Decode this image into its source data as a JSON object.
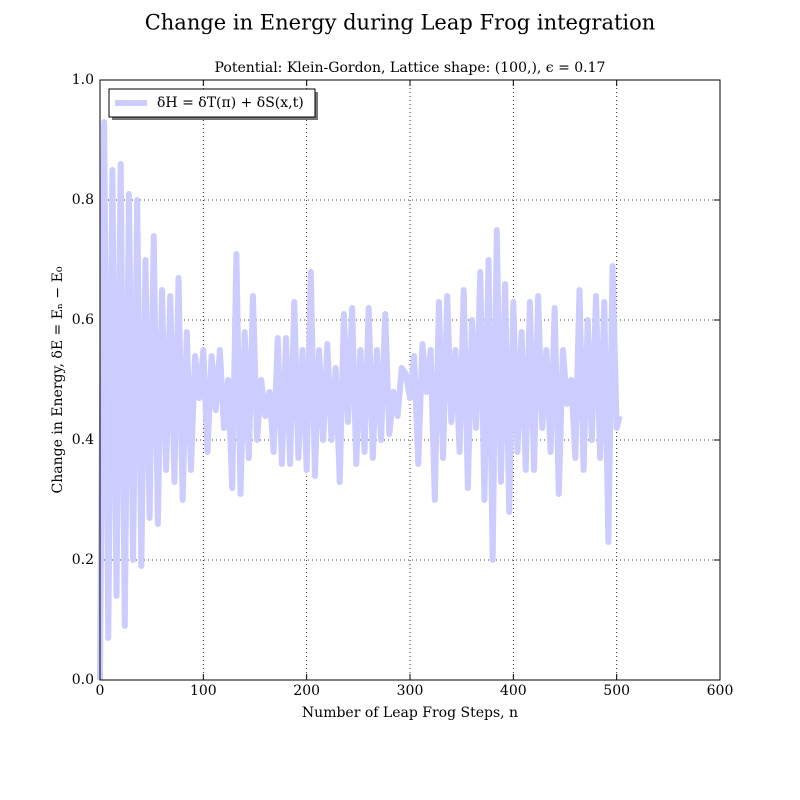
{
  "chart_data": {
    "type": "line",
    "title": "Change in Energy during Leap Frog integration",
    "subtitle": "Potential: Klein-Gordon, Lattice shape: (100,), ϵ = 0.17",
    "x_label": "Number of Leap Frog Steps, n",
    "y_label": "Change in Energy, δE = Eₙ − E₀",
    "x": [
      0,
      4,
      8,
      12,
      16,
      20,
      24,
      28,
      32,
      36,
      40,
      44,
      48,
      52,
      56,
      60,
      64,
      68,
      72,
      76,
      80,
      84,
      88,
      92,
      96,
      100,
      104,
      108,
      112,
      116,
      120,
      124,
      128,
      132,
      136,
      140,
      144,
      148,
      152,
      156,
      160,
      164,
      168,
      172,
      176,
      180,
      184,
      188,
      192,
      196,
      200,
      204,
      208,
      212,
      216,
      220,
      224,
      228,
      232,
      236,
      240,
      244,
      248,
      252,
      256,
      260,
      264,
      268,
      272,
      276,
      280,
      284,
      288,
      292,
      296,
      300,
      304,
      308,
      312,
      316,
      320,
      324,
      328,
      332,
      336,
      340,
      344,
      348,
      352,
      356,
      360,
      364,
      368,
      372,
      376,
      380,
      384,
      388,
      392,
      396,
      400,
      404,
      408,
      412,
      416,
      420,
      424,
      428,
      432,
      436,
      440,
      444,
      448,
      452,
      456,
      460,
      464,
      468,
      472,
      476,
      480,
      484,
      488,
      492,
      496,
      500,
      503
    ],
    "series": [
      {
        "name": "δH = δT(π) + δS(x,t)",
        "color": "#ccccff",
        "values": [
          0.0,
          0.93,
          0.07,
          0.85,
          0.14,
          0.86,
          0.09,
          0.81,
          0.2,
          0.8,
          0.19,
          0.7,
          0.27,
          0.74,
          0.26,
          0.65,
          0.35,
          0.64,
          0.33,
          0.67,
          0.3,
          0.58,
          0.35,
          0.54,
          0.47,
          0.55,
          0.38,
          0.54,
          0.45,
          0.55,
          0.42,
          0.5,
          0.32,
          0.71,
          0.31,
          0.58,
          0.37,
          0.64,
          0.4,
          0.5,
          0.44,
          0.48,
          0.38,
          0.57,
          0.36,
          0.57,
          0.36,
          0.63,
          0.37,
          0.55,
          0.35,
          0.68,
          0.34,
          0.55,
          0.4,
          0.56,
          0.4,
          0.52,
          0.33,
          0.61,
          0.43,
          0.62,
          0.36,
          0.55,
          0.38,
          0.62,
          0.37,
          0.55,
          0.4,
          0.61,
          0.41,
          0.48,
          0.44,
          0.52,
          0.51,
          0.47,
          0.54,
          0.36,
          0.56,
          0.48,
          0.55,
          0.3,
          0.63,
          0.37,
          0.64,
          0.43,
          0.55,
          0.38,
          0.65,
          0.32,
          0.6,
          0.42,
          0.68,
          0.3,
          0.7,
          0.2,
          0.75,
          0.33,
          0.66,
          0.28,
          0.63,
          0.38,
          0.58,
          0.35,
          0.63,
          0.35,
          0.64,
          0.42,
          0.55,
          0.38,
          0.62,
          0.31,
          0.55,
          0.46,
          0.5,
          0.37,
          0.65,
          0.35,
          0.6,
          0.4,
          0.64,
          0.37,
          0.63,
          0.23,
          0.69,
          0.42,
          0.44
        ]
      }
    ],
    "xlim": [
      0,
      600
    ],
    "xticks": [
      0,
      100,
      200,
      300,
      400,
      500,
      600
    ],
    "ylim": [
      0,
      1
    ],
    "yticks": [
      {
        "value": 0,
        "label": "0.0"
      },
      0.2,
      0.4,
      0.6,
      0.8,
      {
        "value": 1,
        "label": "1.0"
      }
    ],
    "grid": true,
    "legend": "upper left"
  }
}
